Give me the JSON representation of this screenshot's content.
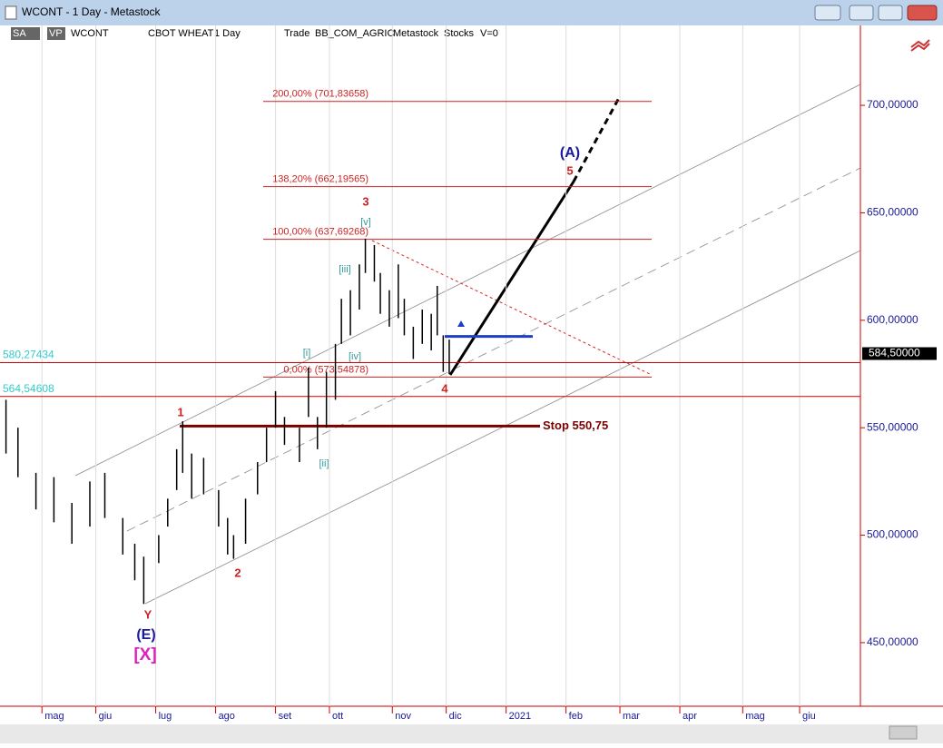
{
  "window": {
    "title": "WCONT - 1 Day - Metastock"
  },
  "toolbar": [
    "SA",
    "VP",
    "WCONT",
    "CBOT WHEAT",
    "1 Day",
    "Trade",
    "BB_COM_AGRIC",
    "Metastock",
    "Stocks",
    "V=0"
  ],
  "chart_data": {
    "type": "hlbar",
    "color": "#000000",
    "x": [
      2,
      6,
      12,
      18,
      24,
      30,
      35,
      41,
      45,
      48,
      53,
      56,
      59,
      61,
      64,
      68,
      73,
      76,
      78,
      82,
      86,
      89,
      92,
      95,
      100,
      103,
      106,
      109,
      112,
      114,
      117,
      120,
      122,
      125,
      127,
      130,
      133,
      135,
      138,
      141,
      144,
      146,
      148,
      150
    ],
    "high": [
      563,
      550,
      529,
      527,
      515,
      525,
      529,
      508,
      496,
      490,
      500,
      517,
      540,
      553,
      538,
      536,
      521,
      508,
      500,
      517,
      534,
      550,
      567,
      555,
      550,
      578,
      555,
      576,
      589,
      610,
      614,
      626,
      638,
      635,
      622,
      614,
      626,
      610,
      597,
      605,
      603,
      616,
      593,
      591
    ],
    "low": [
      538,
      527,
      512,
      506,
      496,
      504,
      508,
      491,
      479,
      468,
      487,
      504,
      521,
      529,
      517,
      519,
      504,
      491,
      489,
      496,
      519,
      534,
      550,
      542,
      534,
      555,
      540,
      550,
      563,
      589,
      593,
      605,
      622,
      618,
      603,
      597,
      601,
      593,
      582,
      589,
      586,
      593,
      576,
      575
    ],
    "xlim": [
      0,
      287.3
    ],
    "ylim": [
      420.4,
      737.2
    ],
    "xticks": [
      {
        "value": 14,
        "label": "mag"
      },
      {
        "value": 32,
        "label": "giu"
      },
      {
        "value": 52,
        "label": "lug"
      },
      {
        "value": 72,
        "label": "ago"
      },
      {
        "value": 92,
        "label": "set"
      },
      {
        "value": 110,
        "label": "ott"
      },
      {
        "value": 131,
        "label": "nov"
      },
      {
        "value": 149,
        "label": "dic"
      },
      {
        "value": 169,
        "label": "2021"
      },
      {
        "value": 189,
        "label": "feb"
      },
      {
        "value": 207,
        "label": "mar"
      },
      {
        "value": 227,
        "label": "apr"
      },
      {
        "value": 248,
        "label": "mag"
      },
      {
        "value": 267,
        "label": "giu"
      }
    ],
    "yticks": [
      {
        "value": 450,
        "label": "450,00000"
      },
      {
        "value": 500,
        "label": "500,00000"
      },
      {
        "value": 550,
        "label": "550,00000"
      },
      {
        "value": 600,
        "label": "600,00000"
      },
      {
        "value": 650,
        "label": "650,00000"
      },
      {
        "value": 700,
        "label": "700,00000"
      }
    ],
    "fib_levels": [
      {
        "value": 701.83658,
        "label": "200,00% (701,83658)"
      },
      {
        "value": 662.19565,
        "label": "138,20% (662,19565)"
      },
      {
        "value": 637.69268,
        "label": "100,00% (637,69268)"
      },
      {
        "value": 573.54878,
        "label": "0,00% (573,54878)"
      }
    ],
    "levels": [
      {
        "value": 580.27434,
        "label": "580,27434"
      },
      {
        "value": 564.54608,
        "label": "564,54608"
      }
    ],
    "stop": {
      "value": 550.75,
      "label": "Stop 550,75"
    },
    "entry_level": 592.5,
    "last_price": {
      "value": 584.5,
      "label": "584,50000"
    },
    "wave_labels": [
      "3",
      "[v]",
      "[iii]",
      "[i]",
      "[iv]",
      "[ii]",
      "1",
      "2",
      "4",
      "5",
      "(A)",
      "Y",
      "(E)",
      "[X]"
    ]
  }
}
